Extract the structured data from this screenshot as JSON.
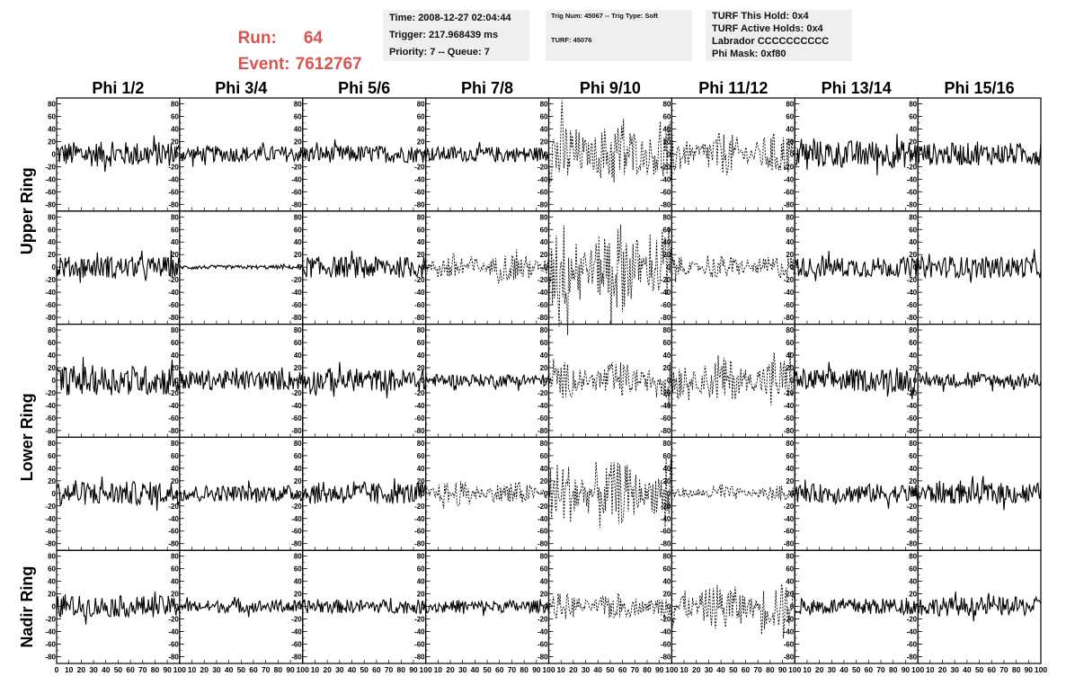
{
  "header": {
    "run_label": "Run:",
    "run_value": "64",
    "event_label": "Event:",
    "event_value": "7612767",
    "info1": [
      "Time: 2008-12-27 02:04:44",
      "Trigger: 217.968439 ms",
      "Priority: 7 -- Queue: 7"
    ],
    "info2": [
      "Trig Num: 45067 -- Trig Type: Soft",
      "TURF: 45076"
    ],
    "info3": [
      "TURF This Hold: 0x4",
      "TURF Active Holds: 0x4",
      "Labrador CCCCCCCCCC",
      "Phi Mask: 0xf80"
    ]
  },
  "chart_data": {
    "type": "line",
    "columns": [
      "Phi 1/2",
      "Phi 3/4",
      "Phi 5/6",
      "Phi 7/8",
      "Phi 9/10",
      "Phi 11/12",
      "Phi 13/14",
      "Phi 15/16"
    ],
    "ring_labels": [
      "Upper Ring",
      "Lower Ring",
      "Nadir Ring"
    ],
    "xlim": [
      0,
      100
    ],
    "ylim": [
      -85,
      85
    ],
    "x_ticks": [
      0,
      10,
      20,
      30,
      40,
      50,
      60,
      70,
      80,
      90,
      100
    ],
    "x_tick_labels_first": [
      "0",
      "10",
      "20",
      "30",
      "40",
      "50",
      "60",
      "70",
      "80",
      "90",
      "100"
    ],
    "x_tick_labels": [
      "10",
      "20",
      "30",
      "40",
      "50",
      "60",
      "70",
      "80",
      "90",
      "100"
    ],
    "y_ticks": [
      80,
      60,
      40,
      20,
      0,
      -20,
      -40,
      -60,
      -80
    ],
    "grid": false,
    "rows": [
      {
        "amplitudes": [
          20,
          13,
          14,
          12,
          40,
          26,
          22,
          18
        ],
        "dashed": [
          false,
          false,
          false,
          false,
          true,
          true,
          false,
          false
        ]
      },
      {
        "amplitudes": [
          17,
          3,
          17,
          17,
          55,
          14,
          16,
          17
        ],
        "dashed": [
          false,
          false,
          false,
          true,
          true,
          true,
          false,
          false
        ]
      },
      {
        "amplitudes": [
          24,
          16,
          18,
          10,
          22,
          27,
          18,
          11
        ],
        "dashed": [
          false,
          false,
          false,
          false,
          true,
          true,
          false,
          false
        ]
      },
      {
        "amplitudes": [
          19,
          13,
          17,
          15,
          38,
          9,
          15,
          17
        ],
        "dashed": [
          false,
          false,
          false,
          true,
          true,
          true,
          false,
          false
        ]
      },
      {
        "amplitudes": [
          17,
          10,
          11,
          10,
          16,
          28,
          13,
          15
        ],
        "dashed": [
          false,
          false,
          false,
          false,
          true,
          true,
          false,
          false
        ]
      }
    ]
  }
}
